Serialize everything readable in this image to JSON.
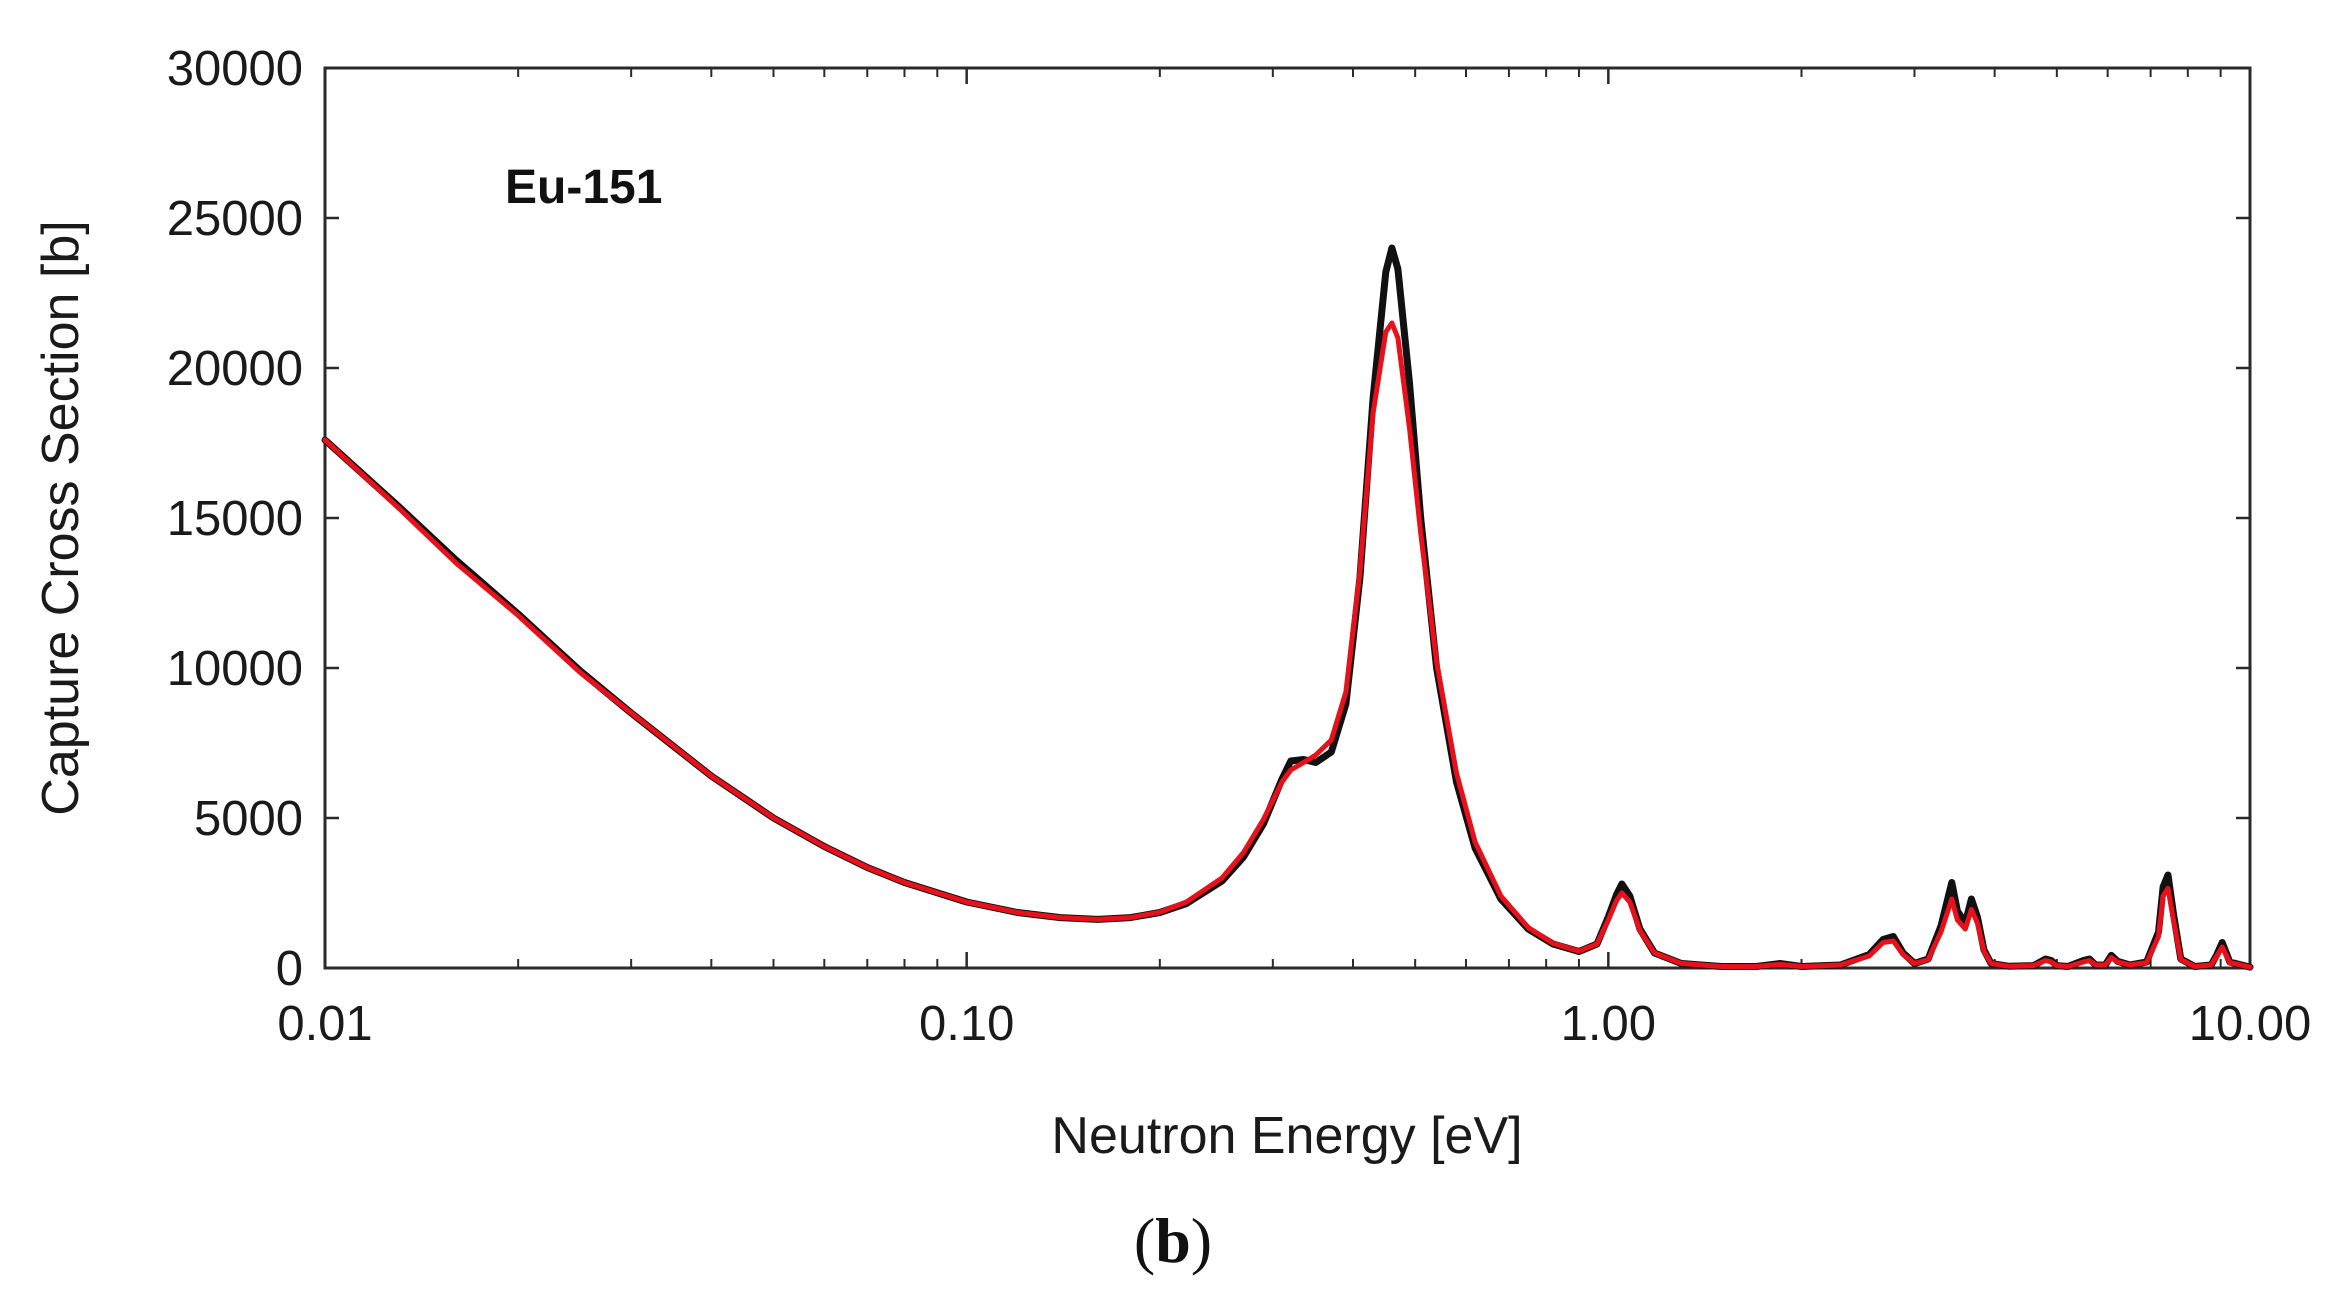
{
  "chart_data": {
    "type": "line",
    "title": "",
    "annotation": "Eu-151",
    "xlabel": "Neutron Energy [eV]",
    "ylabel": "Capture Cross Section [b]",
    "x_scale": "log",
    "xlim": [
      0.01,
      10.0
    ],
    "ylim": [
      0,
      30000
    ],
    "x_ticks": [
      0.01,
      0.1,
      1.0,
      10.0
    ],
    "x_tick_labels": [
      "0.01",
      "0.10",
      "1.00",
      "10.00"
    ],
    "y_ticks": [
      0,
      5000,
      10000,
      15000,
      20000,
      25000,
      30000
    ],
    "y_tick_labels": [
      "0",
      "5000",
      "10000",
      "15000",
      "20000",
      "25000",
      "30000"
    ],
    "caption": {
      "open": "(",
      "letter": "b",
      "close": ")"
    },
    "series": [
      {
        "name": "black",
        "color": "#111111",
        "x": [
          0.01,
          0.013,
          0.016,
          0.02,
          0.025,
          0.03,
          0.04,
          0.05,
          0.06,
          0.07,
          0.08,
          0.1,
          0.12,
          0.14,
          0.16,
          0.18,
          0.2,
          0.22,
          0.25,
          0.27,
          0.29,
          0.31,
          0.32,
          0.335,
          0.35,
          0.37,
          0.39,
          0.41,
          0.43,
          0.45,
          0.46,
          0.47,
          0.49,
          0.51,
          0.54,
          0.58,
          0.62,
          0.68,
          0.75,
          0.82,
          0.9,
          0.96,
          1.0,
          1.03,
          1.05,
          1.08,
          1.12,
          1.18,
          1.3,
          1.5,
          1.7,
          1.85,
          2.0,
          2.3,
          2.55,
          2.68,
          2.78,
          2.88,
          3.0,
          3.15,
          3.3,
          3.43,
          3.5,
          3.6,
          3.68,
          3.76,
          3.85,
          3.95,
          4.2,
          4.6,
          4.8,
          4.9,
          5.0,
          5.2,
          5.5,
          5.62,
          5.75,
          5.95,
          6.08,
          6.22,
          6.5,
          6.9,
          7.2,
          7.32,
          7.45,
          7.6,
          7.8,
          8.2,
          8.7,
          8.88,
          9.05,
          9.3,
          10.0
        ],
        "y": [
          17600,
          15400,
          13600,
          11800,
          9900,
          8500,
          6400,
          5000,
          4050,
          3350,
          2850,
          2200,
          1850,
          1680,
          1620,
          1680,
          1850,
          2150,
          2900,
          3700,
          4800,
          6300,
          6900,
          6950,
          6850,
          7200,
          8800,
          13000,
          19000,
          23200,
          24000,
          23300,
          19500,
          15000,
          10000,
          6200,
          4000,
          2300,
          1300,
          800,
          550,
          800,
          1700,
          2450,
          2800,
          2400,
          1300,
          500,
          150,
          50,
          50,
          150,
          50,
          100,
          450,
          950,
          1050,
          500,
          150,
          300,
          1400,
          2850,
          1900,
          1500,
          2300,
          1700,
          600,
          150,
          60,
          80,
          300,
          250,
          80,
          50,
          250,
          300,
          100,
          100,
          420,
          220,
          100,
          200,
          1200,
          2700,
          3100,
          1800,
          300,
          50,
          100,
          450,
          850,
          200,
          30
        ]
      },
      {
        "name": "red",
        "color": "#e8101a",
        "x": [
          0.01,
          0.013,
          0.016,
          0.02,
          0.025,
          0.03,
          0.04,
          0.05,
          0.06,
          0.07,
          0.08,
          0.1,
          0.12,
          0.14,
          0.16,
          0.18,
          0.2,
          0.22,
          0.25,
          0.27,
          0.29,
          0.31,
          0.32,
          0.335,
          0.35,
          0.37,
          0.39,
          0.41,
          0.43,
          0.45,
          0.46,
          0.47,
          0.49,
          0.51,
          0.54,
          0.58,
          0.62,
          0.68,
          0.75,
          0.82,
          0.9,
          0.96,
          1.0,
          1.03,
          1.05,
          1.08,
          1.12,
          1.18,
          1.3,
          1.5,
          1.7,
          1.85,
          2.0,
          2.3,
          2.55,
          2.68,
          2.78,
          2.88,
          3.0,
          3.15,
          3.3,
          3.43,
          3.5,
          3.6,
          3.68,
          3.76,
          3.85,
          3.95,
          4.2,
          4.6,
          4.8,
          4.9,
          5.0,
          5.2,
          5.5,
          5.62,
          5.75,
          5.95,
          6.08,
          6.22,
          6.5,
          6.9,
          7.2,
          7.32,
          7.45,
          7.6,
          7.8,
          8.2,
          8.7,
          8.88,
          9.05,
          9.3,
          10.0
        ],
        "y": [
          17600,
          15350,
          13500,
          11750,
          9850,
          8500,
          6400,
          5000,
          4050,
          3350,
          2850,
          2200,
          1850,
          1680,
          1620,
          1680,
          1860,
          2200,
          3000,
          3850,
          4950,
          6200,
          6600,
          6850,
          7100,
          7600,
          9200,
          13200,
          18500,
          21200,
          21500,
          21000,
          18000,
          14500,
          10200,
          6500,
          4200,
          2400,
          1350,
          820,
          560,
          800,
          1600,
          2250,
          2500,
          2200,
          1250,
          500,
          150,
          50,
          50,
          120,
          50,
          100,
          400,
          850,
          900,
          450,
          150,
          280,
          1200,
          2300,
          1600,
          1300,
          1950,
          1500,
          550,
          150,
          60,
          80,
          250,
          200,
          80,
          50,
          200,
          250,
          100,
          100,
          350,
          200,
          100,
          180,
          1050,
          2400,
          2650,
          1600,
          280,
          50,
          100,
          400,
          700,
          180,
          30
        ]
      }
    ]
  }
}
